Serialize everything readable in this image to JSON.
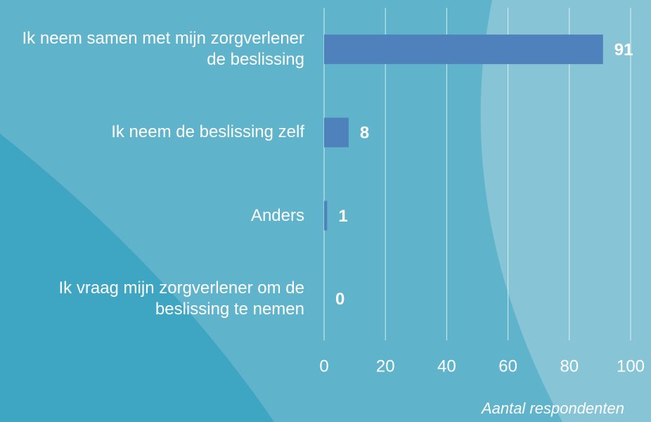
{
  "chart_data": {
    "type": "barh",
    "categories": [
      "Ik neem samen met mijn zorgverlener de beslissing",
      "Ik neem de beslissing zelf",
      "Anders",
      "Ik vraag mijn zorgverlener om de beslissing te nemen"
    ],
    "values": [
      91,
      8,
      1,
      0
    ],
    "color": "#4f81bd",
    "xlim": [
      0,
      100
    ],
    "xticks": [
      0,
      20,
      40,
      60,
      80,
      100
    ],
    "grid": true,
    "x_label": "Aantal respondenten"
  }
}
